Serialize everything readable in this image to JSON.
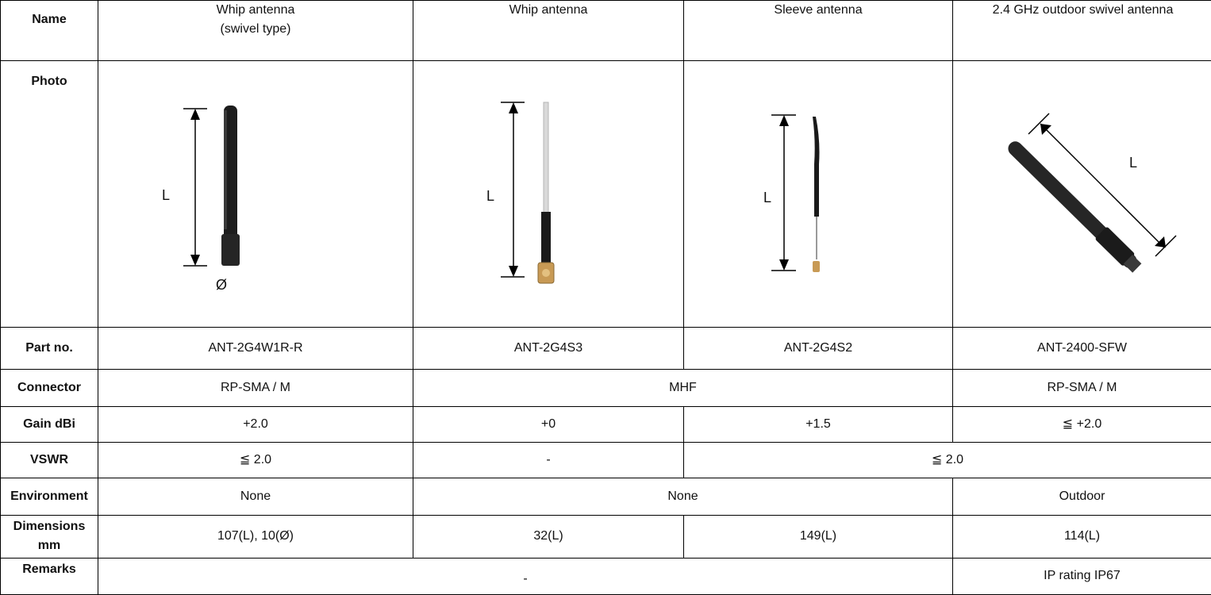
{
  "row_headers": {
    "name": "Name",
    "photo": "Photo",
    "part_no": "Part no.",
    "connector": "Connector",
    "gain": "Gain dBi",
    "vswr": "VSWR",
    "environment": "Environment",
    "dimensions": "Dimensions mm",
    "remarks": "Remarks"
  },
  "columns": [
    {
      "name": "Whip antenna (swivel type)",
      "photo_icon": "swivel-whip-antenna-photo",
      "photo_labels": [
        "L",
        "Ø"
      ],
      "part_no": "ANT-2G4W1R-R",
      "gain": "+2.0",
      "vswr": "≦ 2.0",
      "dimensions": "107(L), 10(Ø)"
    },
    {
      "name": "Whip antenna",
      "photo_icon": "whip-antenna-photo",
      "photo_labels": [
        "L"
      ],
      "part_no": "ANT-2G4S3",
      "gain": "+0",
      "dimensions": "32(L)"
    },
    {
      "name": "Sleeve antenna",
      "photo_icon": "sleeve-antenna-photo",
      "photo_labels": [
        "L"
      ],
      "part_no": "ANT-2G4S2",
      "gain": "+1.5",
      "dimensions": "149(L)"
    },
    {
      "name": "2.4 GHz outdoor swivel antenna",
      "photo_icon": "outdoor-swivel-antenna-photo",
      "photo_labels": [
        "L"
      ],
      "part_no": "ANT-2400-SFW",
      "gain": "≦ +2.0",
      "dimensions": "114(L)",
      "remarks": "IP rating IP67"
    }
  ],
  "merged": {
    "connector_1": "RP-SMA / M",
    "connector_2_3": "MHF",
    "connector_4": "RP-SMA / M",
    "vswr_2": "-",
    "vswr_3_4": "≦ 2.0",
    "environment_1": "None",
    "environment_2_3": "None",
    "environment_4": "Outdoor",
    "remarks_1_3": "-"
  }
}
